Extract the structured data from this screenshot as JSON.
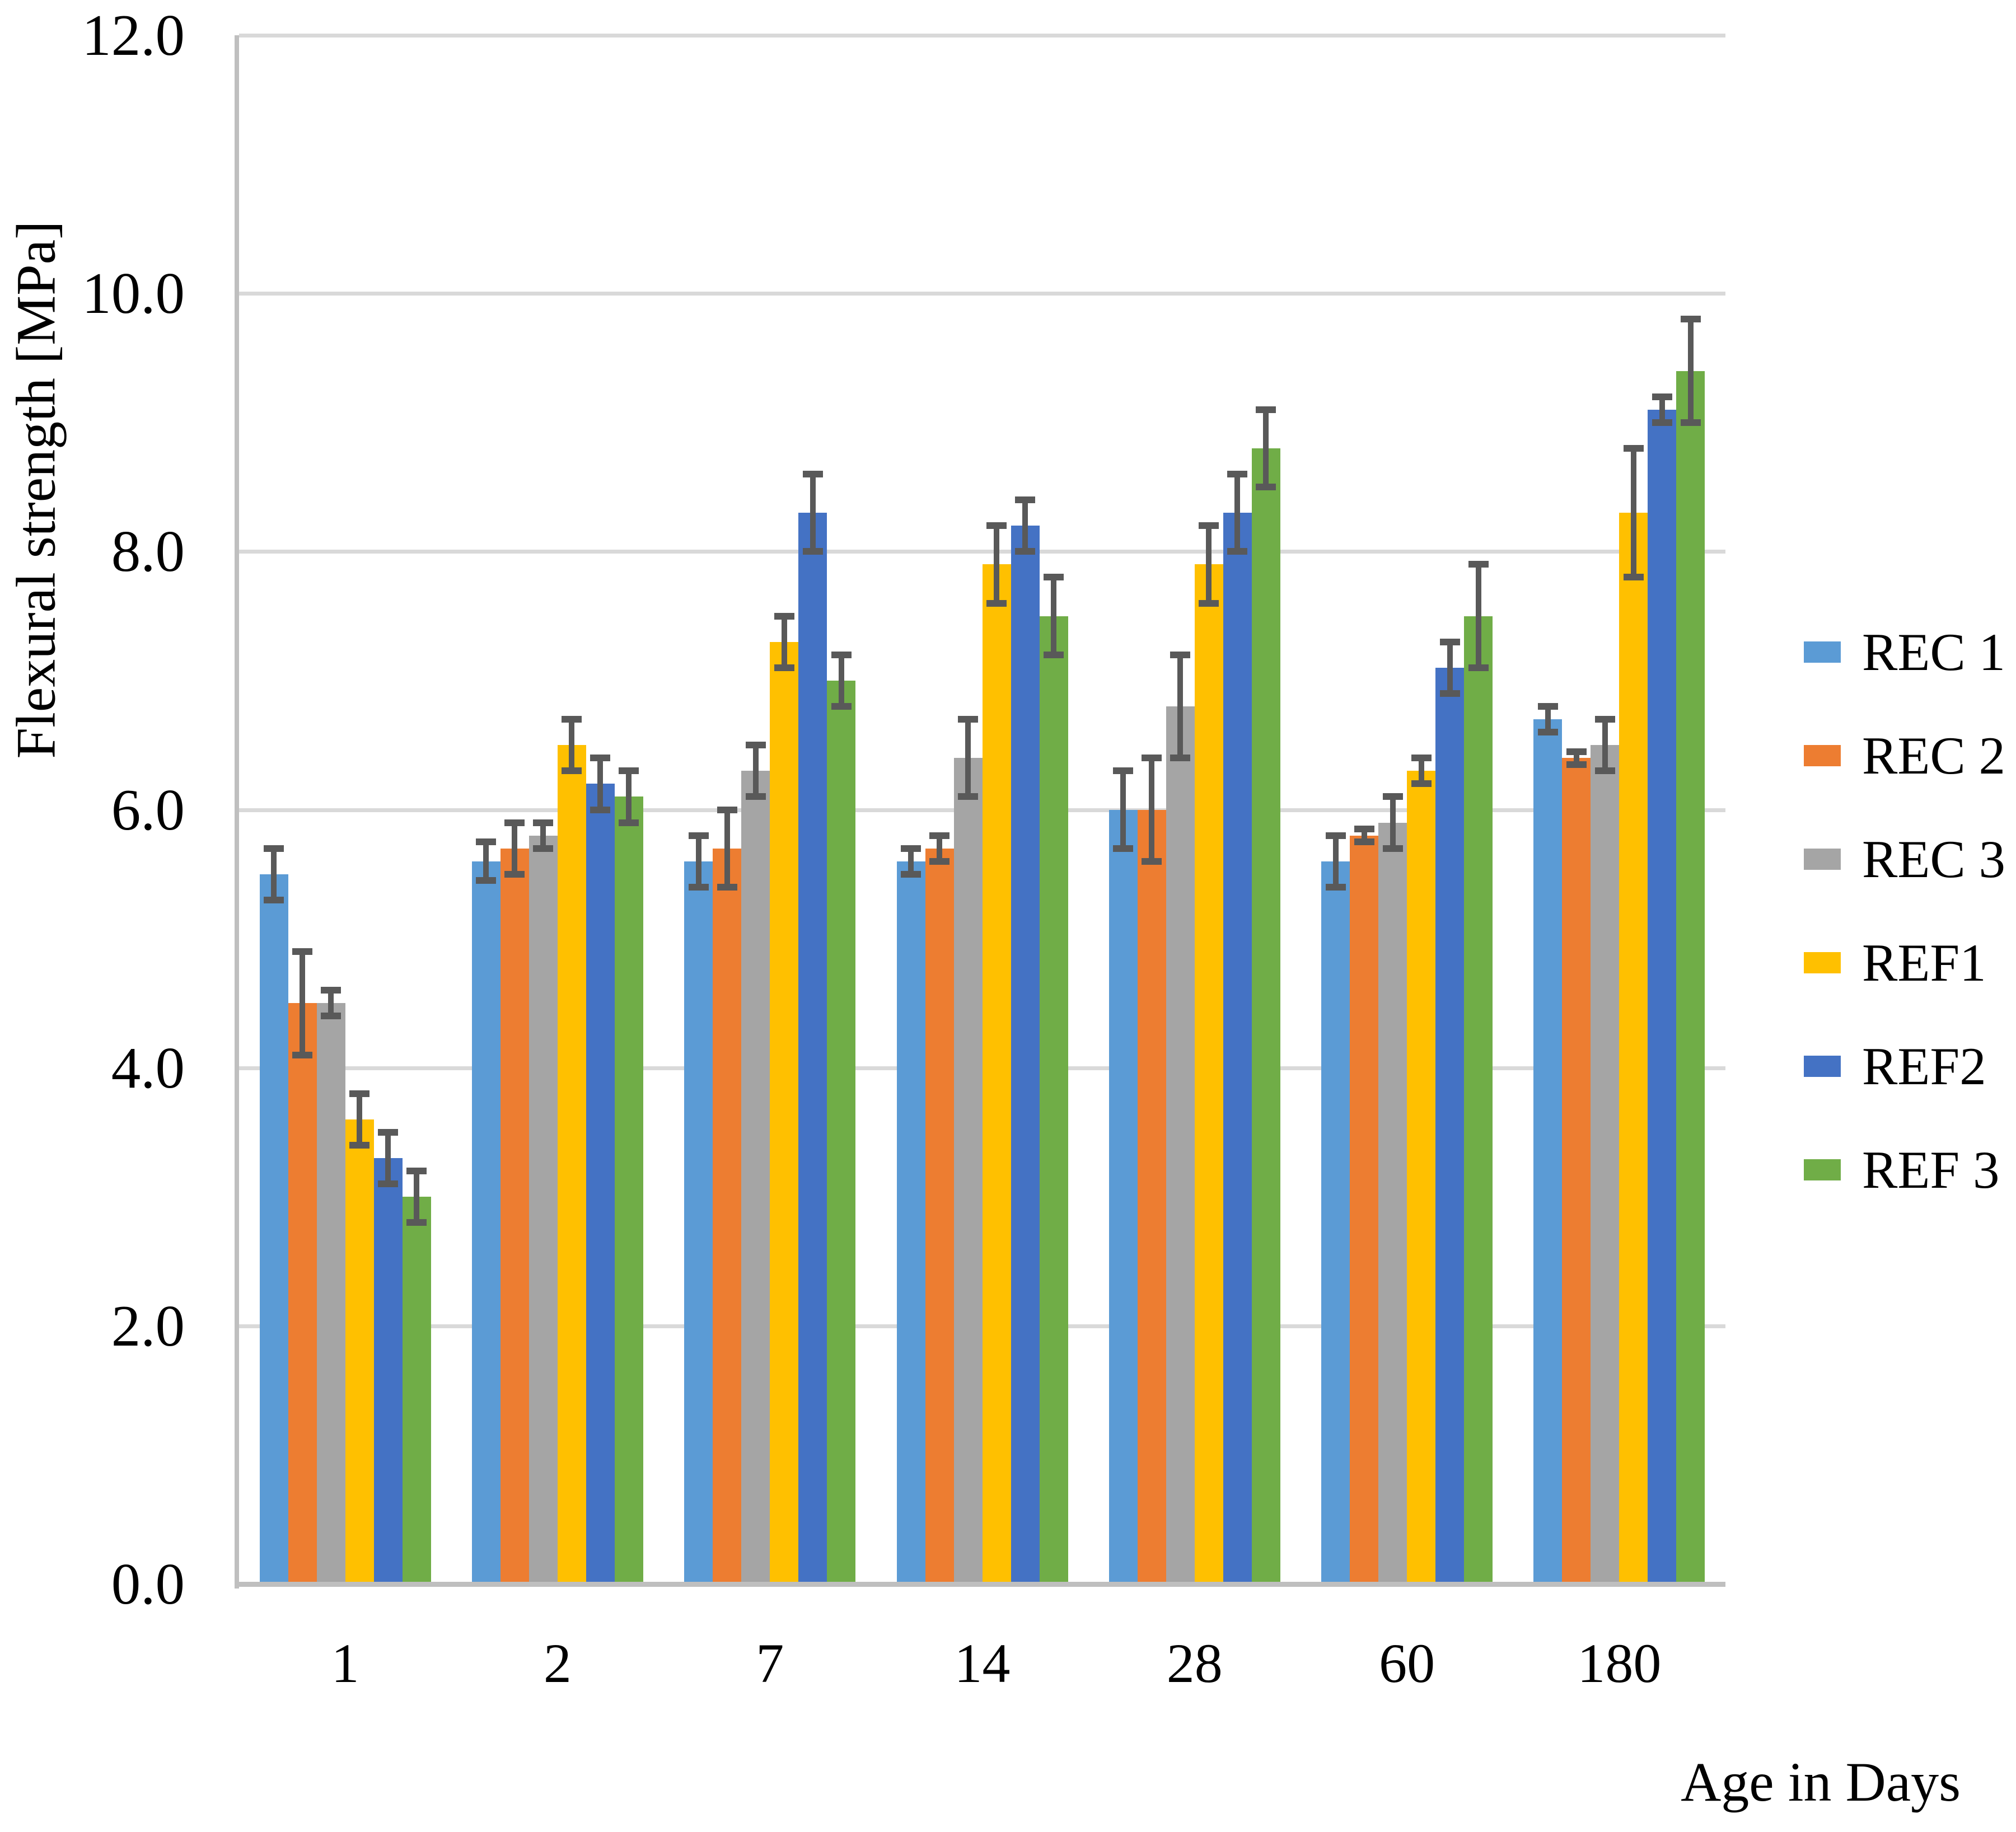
{
  "chart_data": {
    "type": "bar",
    "title": "",
    "xlabel": "Age in Days",
    "ylabel": "Flexural strength [MPa]",
    "categories": [
      "1",
      "2",
      "7",
      "14",
      "28",
      "60",
      "180"
    ],
    "series": [
      {
        "name": "REC 1",
        "color": "#5B9BD5",
        "values": [
          5.5,
          5.6,
          5.6,
          5.6,
          6.0,
          5.6,
          6.7
        ],
        "errors": [
          0.2,
          0.15,
          0.2,
          0.1,
          0.3,
          0.2,
          0.1
        ]
      },
      {
        "name": "REC 2",
        "color": "#ED7D31",
        "values": [
          4.5,
          5.7,
          5.7,
          5.7,
          6.0,
          5.8,
          6.4
        ],
        "errors": [
          0.4,
          0.2,
          0.3,
          0.1,
          0.4,
          0.05,
          0.05
        ]
      },
      {
        "name": "REC 3",
        "color": "#A5A5A5",
        "values": [
          4.5,
          5.8,
          6.3,
          6.4,
          6.8,
          5.9,
          6.5
        ],
        "errors": [
          0.1,
          0.1,
          0.2,
          0.3,
          0.4,
          0.2,
          0.2
        ]
      },
      {
        "name": "REF1",
        "color": "#FFC000",
        "values": [
          3.6,
          6.5,
          7.3,
          7.9,
          7.9,
          6.3,
          8.3
        ],
        "errors": [
          0.2,
          0.2,
          0.2,
          0.3,
          0.3,
          0.1,
          0.5
        ]
      },
      {
        "name": "REF2",
        "color": "#4472C4",
        "values": [
          3.3,
          6.2,
          8.3,
          8.2,
          8.3,
          7.1,
          9.1
        ],
        "errors": [
          0.2,
          0.2,
          0.3,
          0.2,
          0.3,
          0.2,
          0.1
        ]
      },
      {
        "name": "REF 3",
        "color": "#70AD47",
        "values": [
          3.0,
          6.1,
          7.0,
          7.5,
          8.8,
          7.5,
          9.4
        ],
        "errors": [
          0.2,
          0.2,
          0.2,
          0.3,
          0.3,
          0.4,
          0.4
        ]
      }
    ],
    "ylim": [
      0,
      12
    ],
    "ytick_step": 2,
    "ytick_labels": [
      "0.0",
      "2.0",
      "4.0",
      "6.0",
      "8.0",
      "10.0",
      "12.0"
    ],
    "grid": true,
    "legend_position": "right",
    "error_bar_color": "#595959",
    "gridline_color": "#D9D9D9",
    "axis_line_color": "#BFBFBF"
  }
}
